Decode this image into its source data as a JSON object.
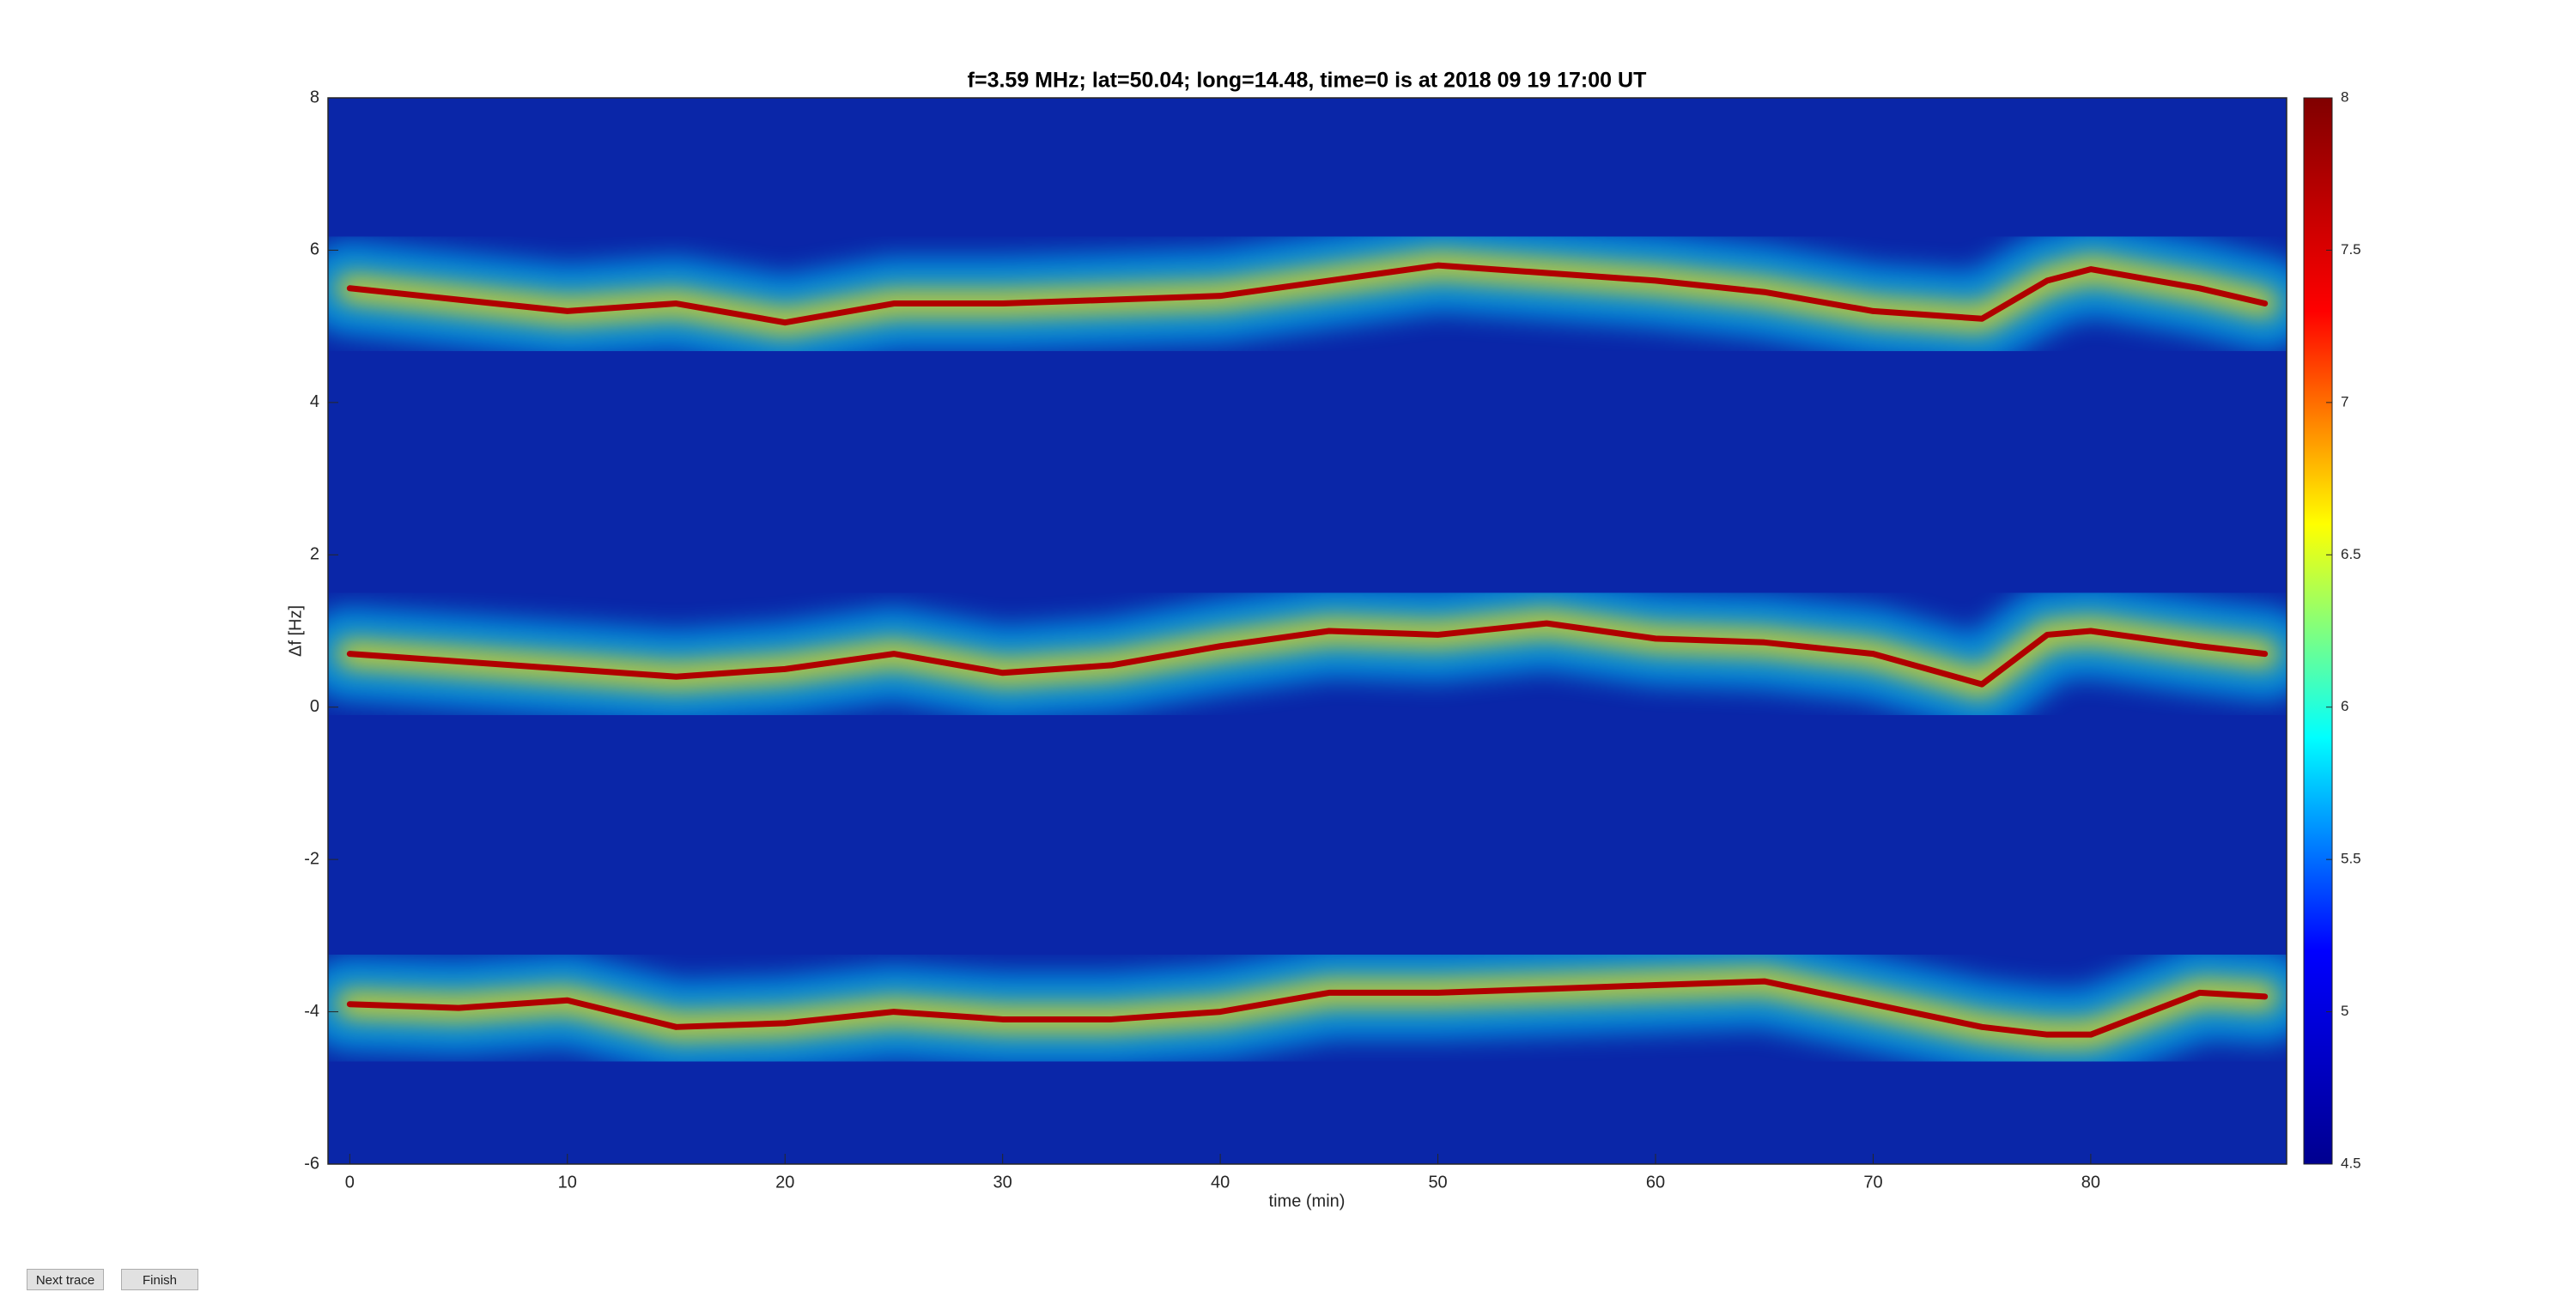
{
  "chart_data": {
    "type": "line",
    "title": "f=3.59 MHz;  lat=50.04; long=14.48, time=0 is at 2018 09 19 17:00 UT",
    "x_label": "time (min)",
    "y_label": "Δf [Hz]",
    "xlim": [
      -1,
      89
    ],
    "xticks": [
      0,
      10,
      20,
      30,
      40,
      50,
      60,
      70,
      80
    ],
    "ylim": [
      -6,
      8
    ],
    "yticks": [
      -6,
      -4,
      -2,
      0,
      2,
      4,
      6,
      8
    ],
    "x": [
      0,
      5,
      10,
      15,
      20,
      25,
      30,
      35,
      40,
      45,
      50,
      55,
      60,
      65,
      70,
      75,
      78,
      80,
      85,
      88
    ],
    "series": [
      {
        "color": "#b00000",
        "values": [
          5.5,
          5.35,
          5.2,
          5.3,
          5.05,
          5.3,
          5.3,
          5.35,
          5.4,
          5.6,
          5.8,
          5.7,
          5.6,
          5.45,
          5.2,
          5.1,
          5.6,
          5.75,
          5.5,
          5.3
        ]
      },
      {
        "color": "#b00000",
        "values": [
          0.7,
          0.6,
          0.5,
          0.4,
          0.5,
          0.7,
          0.45,
          0.55,
          0.8,
          1.0,
          0.95,
          1.1,
          0.9,
          0.85,
          0.7,
          0.3,
          0.95,
          1.0,
          0.8,
          0.7
        ]
      },
      {
        "color": "#b00000",
        "values": [
          -3.9,
          -3.95,
          -3.85,
          -4.2,
          -4.15,
          -4.0,
          -4.1,
          -4.1,
          -4.0,
          -3.75,
          -3.75,
          -3.7,
          -3.65,
          -3.6,
          -3.9,
          -4.2,
          -4.3,
          -4.3,
          -3.75,
          -3.8
        ]
      }
    ],
    "colorbar": {
      "lim": [
        4.5,
        8
      ],
      "ticks": [
        4.5,
        5,
        5.5,
        6,
        6.5,
        7,
        7.5,
        8
      ],
      "colors": [
        "#00008f",
        "#0000ff",
        "#00ffff",
        "#ffff00",
        "#ff0000",
        "#800000"
      ]
    }
  },
  "buttons": [
    "Next trace",
    "Finish"
  ]
}
